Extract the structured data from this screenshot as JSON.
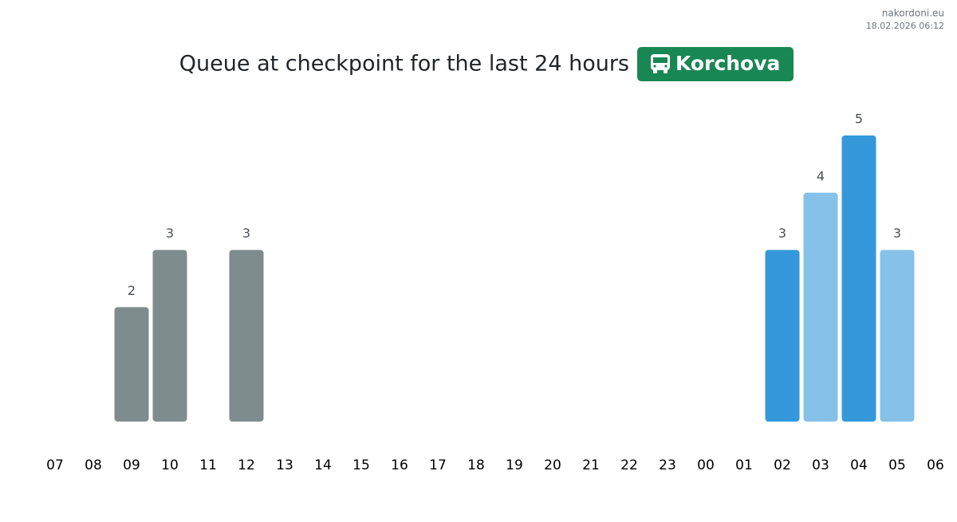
{
  "site": "nakordoni.eu",
  "timestamp": "18.02.2026 06:12",
  "chart_data": {
    "type": "bar",
    "title": "Queue at checkpoint for the last 24 hours",
    "checkpoint": "Korchova",
    "categories": [
      "07",
      "08",
      "09",
      "10",
      "11",
      "12",
      "13",
      "14",
      "15",
      "16",
      "17",
      "18",
      "19",
      "20",
      "21",
      "22",
      "23",
      "00",
      "01",
      "02",
      "03",
      "04",
      "05",
      "06"
    ],
    "values": [
      null,
      null,
      2,
      3,
      null,
      3,
      null,
      null,
      null,
      null,
      null,
      null,
      null,
      null,
      null,
      null,
      null,
      null,
      null,
      3,
      4,
      5,
      3,
      null
    ],
    "colors": [
      null,
      null,
      "#7f8c8d",
      "#7f8c8d",
      null,
      "#7f8c8d",
      null,
      null,
      null,
      null,
      null,
      null,
      null,
      null,
      null,
      null,
      null,
      null,
      null,
      "#3498db",
      "#85c1e9",
      "#3498db",
      "#85c1e9",
      null
    ],
    "ylim": [
      0,
      5
    ]
  }
}
